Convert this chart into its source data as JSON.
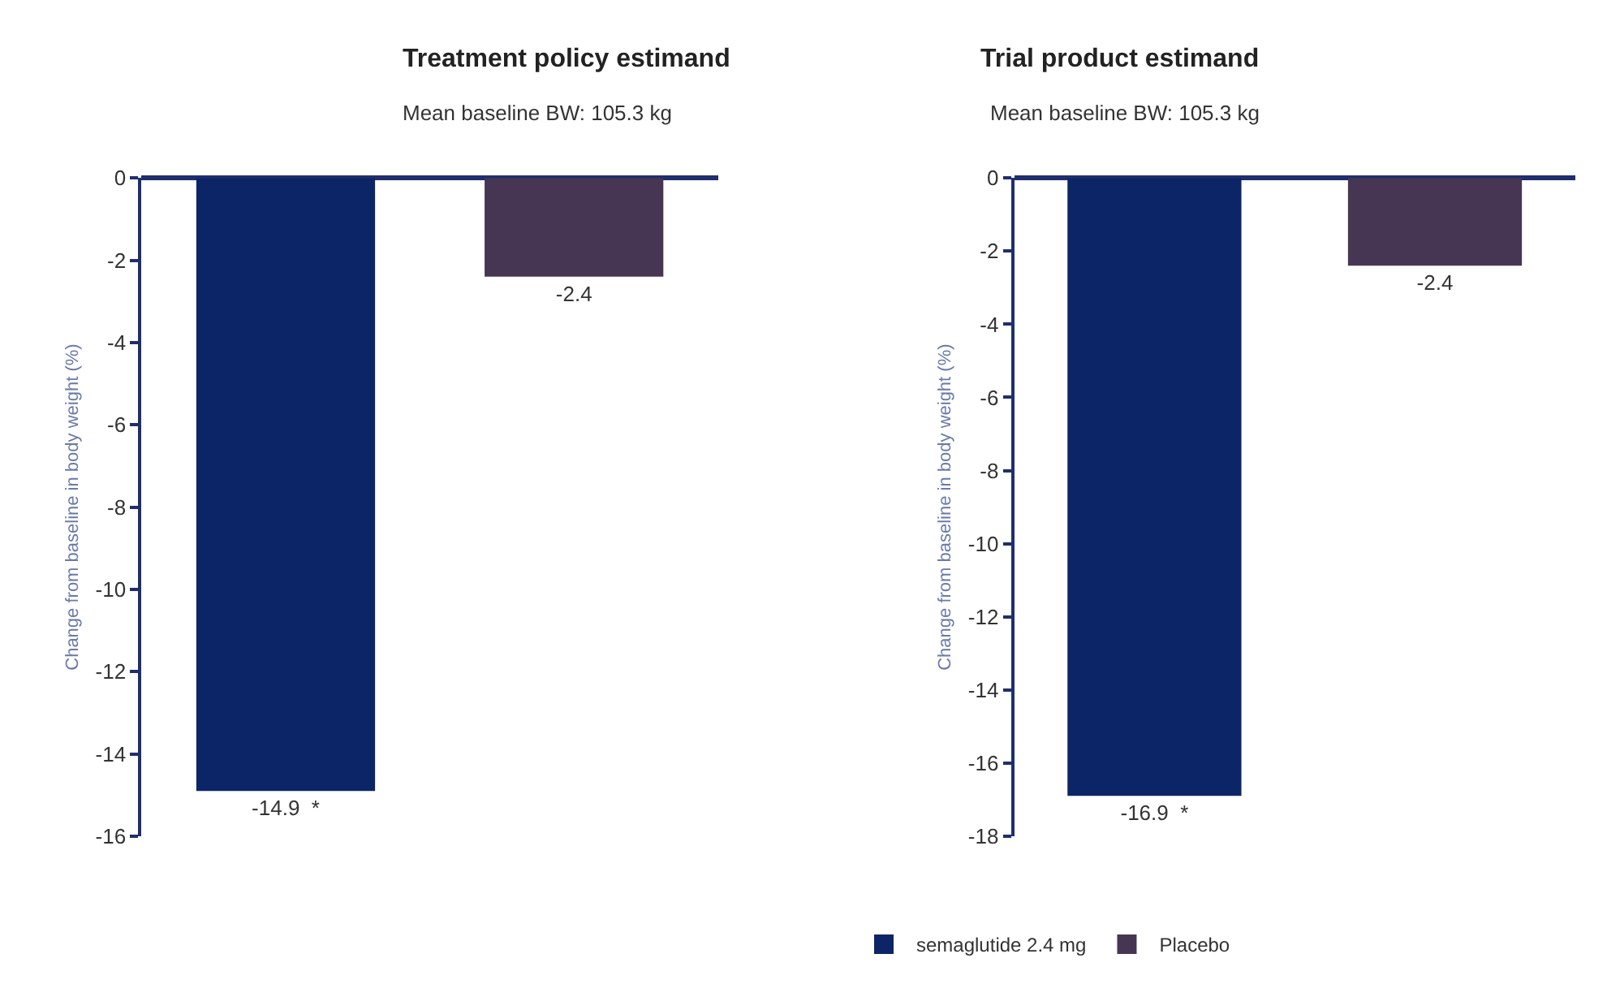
{
  "chart_data": [
    {
      "type": "bar",
      "title": "Treatment policy estimand",
      "subtitle": "Mean baseline BW: 105.3 kg",
      "ylabel": "Change from baseline in body weight (%)",
      "categories": [
        null,
        null
      ],
      "ylim": [
        -16,
        0
      ],
      "yticks": [
        0,
        -2,
        -4,
        -6,
        -8,
        -10,
        -12,
        -14,
        -16
      ],
      "tick_labels": "y",
      "legend": "bottom",
      "series": [
        {
          "name": "semaglutide 2.4 mg",
          "color": "#0b2566",
          "values": [
            -14.9,
            null
          ],
          "value_labels": [
            "-14.9  *",
            null
          ]
        },
        {
          "name": "Placebo",
          "color": "#463653",
          "values": [
            null,
            -2.4
          ],
          "value_labels": [
            null,
            "-2.4"
          ]
        }
      ]
    },
    {
      "type": "bar",
      "title": "Trial product estimand",
      "subtitle": "Mean baseline BW: 105.3 kg",
      "ylabel": "Change from baseline in body weight (%)",
      "categories": [
        null,
        null
      ],
      "ylim": [
        -18,
        0
      ],
      "yticks": [
        0,
        -2,
        -4,
        -6,
        -8,
        -10,
        -12,
        -14,
        -16,
        -18
      ],
      "tick_labels": "y",
      "legend": "bottom",
      "series": [
        {
          "name": "semaglutide 2.4 mg",
          "color": "#0b2566",
          "values": [
            -16.9,
            null
          ],
          "value_labels": [
            "-16.9  *",
            null
          ]
        },
        {
          "name": "Placebo",
          "color": "#463653",
          "values": [
            null,
            -2.4
          ],
          "value_labels": [
            null,
            "-2.4"
          ]
        }
      ]
    }
  ]
}
